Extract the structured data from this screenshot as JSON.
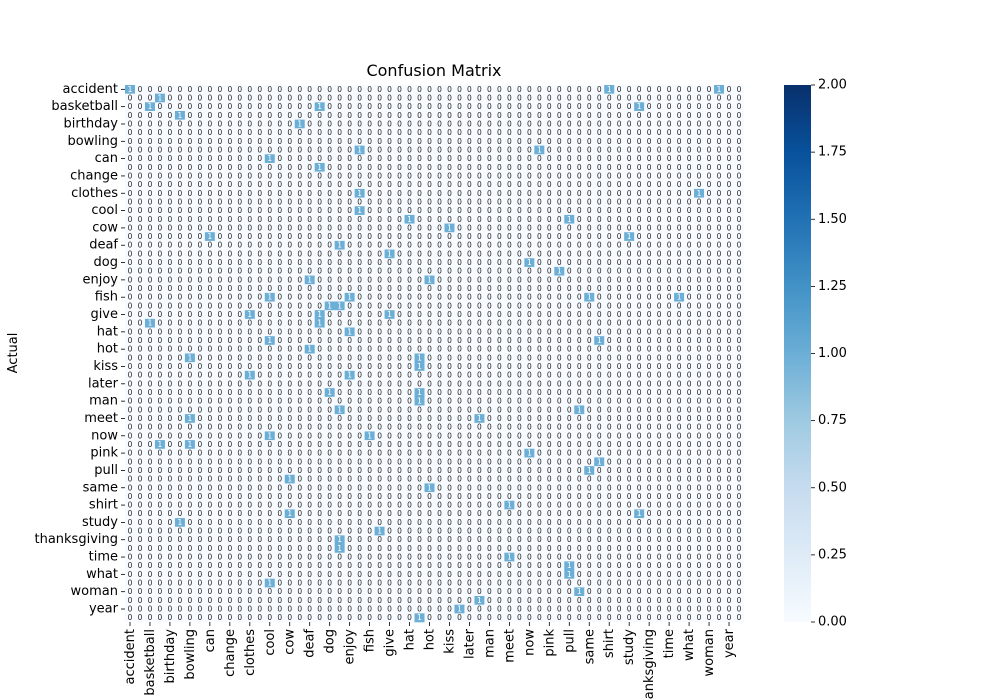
{
  "chart_data": {
    "type": "heatmap",
    "title": "Confusion Matrix",
    "xlabel": "",
    "ylabel": "Actual",
    "x_tick_labels": [
      "accident",
      "basketball",
      "birthday",
      "bowling",
      "can",
      "change",
      "clothes",
      "cool",
      "cow",
      "deaf",
      "dog",
      "enjoy",
      "fish",
      "give",
      "hat",
      "hot",
      "kiss",
      "later",
      "man",
      "meet",
      "now",
      "pink",
      "pull",
      "same",
      "shirt",
      "study",
      "thanksgiving",
      "time",
      "what",
      "woman",
      "year"
    ],
    "y_tick_labels": [
      "accident",
      "basketball",
      "birthday",
      "bowling",
      "can",
      "change",
      "clothes",
      "cool",
      "cow",
      "deaf",
      "dog",
      "enjoy",
      "fish",
      "give",
      "hat",
      "hot",
      "kiss",
      "later",
      "man",
      "meet",
      "now",
      "pink",
      "pull",
      "same",
      "shirt",
      "study",
      "thanksgiving",
      "time",
      "what",
      "woman",
      "year"
    ],
    "n_classes": 62,
    "label_every": 2,
    "colormap": "Blues",
    "vmin": 0,
    "vmax": 2,
    "colorbar_ticks": [
      "0.00",
      "0.25",
      "0.50",
      "0.75",
      "1.00",
      "1.25",
      "1.50",
      "1.75",
      "2.00"
    ],
    "annotation_format": "counts shown in every cell",
    "nonzero_cells": [
      {
        "row": 0,
        "col": 0,
        "value": 1
      },
      {
        "row": 0,
        "col": 48,
        "value": 1
      },
      {
        "row": 0,
        "col": 59,
        "value": 1
      },
      {
        "row": 1,
        "col": 3,
        "value": 1
      },
      {
        "row": 2,
        "col": 2,
        "value": 1
      },
      {
        "row": 2,
        "col": 19,
        "value": 1
      },
      {
        "row": 2,
        "col": 51,
        "value": 1
      },
      {
        "row": 3,
        "col": 5,
        "value": 1
      },
      {
        "row": 4,
        "col": 17,
        "value": 1
      },
      {
        "row": 7,
        "col": 23,
        "value": 1
      },
      {
        "row": 7,
        "col": 41,
        "value": 1
      },
      {
        "row": 8,
        "col": 14,
        "value": 1
      },
      {
        "row": 9,
        "col": 19,
        "value": 1
      },
      {
        "row": 12,
        "col": 23,
        "value": 1
      },
      {
        "row": 12,
        "col": 57,
        "value": 1
      },
      {
        "row": 14,
        "col": 23,
        "value": 1
      },
      {
        "row": 15,
        "col": 28,
        "value": 1
      },
      {
        "row": 15,
        "col": 44,
        "value": 1
      },
      {
        "row": 16,
        "col": 32,
        "value": 1
      },
      {
        "row": 17,
        "col": 8,
        "value": 1
      },
      {
        "row": 17,
        "col": 50,
        "value": 1
      },
      {
        "row": 18,
        "col": 21,
        "value": 1
      },
      {
        "row": 19,
        "col": 26,
        "value": 1
      },
      {
        "row": 20,
        "col": 40,
        "value": 1
      },
      {
        "row": 21,
        "col": 43,
        "value": 1
      },
      {
        "row": 22,
        "col": 18,
        "value": 1
      },
      {
        "row": 22,
        "col": 30,
        "value": 1
      },
      {
        "row": 24,
        "col": 14,
        "value": 1
      },
      {
        "row": 24,
        "col": 22,
        "value": 1
      },
      {
        "row": 24,
        "col": 46,
        "value": 1
      },
      {
        "row": 24,
        "col": 55,
        "value": 1
      },
      {
        "row": 25,
        "col": 20,
        "value": 1
      },
      {
        "row": 25,
        "col": 21,
        "value": 1
      },
      {
        "row": 26,
        "col": 12,
        "value": 1
      },
      {
        "row": 26,
        "col": 19,
        "value": 1
      },
      {
        "row": 26,
        "col": 26,
        "value": 1
      },
      {
        "row": 27,
        "col": 2,
        "value": 1
      },
      {
        "row": 27,
        "col": 19,
        "value": 1
      },
      {
        "row": 28,
        "col": 22,
        "value": 1
      },
      {
        "row": 29,
        "col": 14,
        "value": 1
      },
      {
        "row": 29,
        "col": 47,
        "value": 1
      },
      {
        "row": 30,
        "col": 18,
        "value": 1
      },
      {
        "row": 31,
        "col": 6,
        "value": 1
      },
      {
        "row": 31,
        "col": 29,
        "value": 1
      },
      {
        "row": 32,
        "col": 29,
        "value": 1
      },
      {
        "row": 33,
        "col": 12,
        "value": 1
      },
      {
        "row": 33,
        "col": 22,
        "value": 1
      },
      {
        "row": 35,
        "col": 20,
        "value": 1
      },
      {
        "row": 35,
        "col": 29,
        "value": 1
      },
      {
        "row": 36,
        "col": 29,
        "value": 1
      },
      {
        "row": 37,
        "col": 21,
        "value": 1
      },
      {
        "row": 37,
        "col": 45,
        "value": 1
      },
      {
        "row": 38,
        "col": 6,
        "value": 1
      },
      {
        "row": 38,
        "col": 35,
        "value": 1
      },
      {
        "row": 40,
        "col": 14,
        "value": 1
      },
      {
        "row": 40,
        "col": 24,
        "value": 1
      },
      {
        "row": 41,
        "col": 3,
        "value": 1
      },
      {
        "row": 41,
        "col": 6,
        "value": 1
      },
      {
        "row": 42,
        "col": 40,
        "value": 1
      },
      {
        "row": 43,
        "col": 47,
        "value": 1
      },
      {
        "row": 44,
        "col": 46,
        "value": 1
      },
      {
        "row": 45,
        "col": 16,
        "value": 1
      },
      {
        "row": 46,
        "col": 30,
        "value": 1
      },
      {
        "row": 48,
        "col": 38,
        "value": 1
      },
      {
        "row": 49,
        "col": 16,
        "value": 1
      },
      {
        "row": 49,
        "col": 51,
        "value": 1
      },
      {
        "row": 50,
        "col": 5,
        "value": 1
      },
      {
        "row": 51,
        "col": 25,
        "value": 1
      },
      {
        "row": 52,
        "col": 21,
        "value": 1
      },
      {
        "row": 53,
        "col": 21,
        "value": 1
      },
      {
        "row": 54,
        "col": 38,
        "value": 1
      },
      {
        "row": 55,
        "col": 44,
        "value": 1
      },
      {
        "row": 56,
        "col": 44,
        "value": 1
      },
      {
        "row": 57,
        "col": 14,
        "value": 1
      },
      {
        "row": 58,
        "col": 45,
        "value": 1
      },
      {
        "row": 59,
        "col": 35,
        "value": 1
      },
      {
        "row": 60,
        "col": 33,
        "value": 1
      },
      {
        "row": 61,
        "col": 29,
        "value": 1
      }
    ]
  }
}
